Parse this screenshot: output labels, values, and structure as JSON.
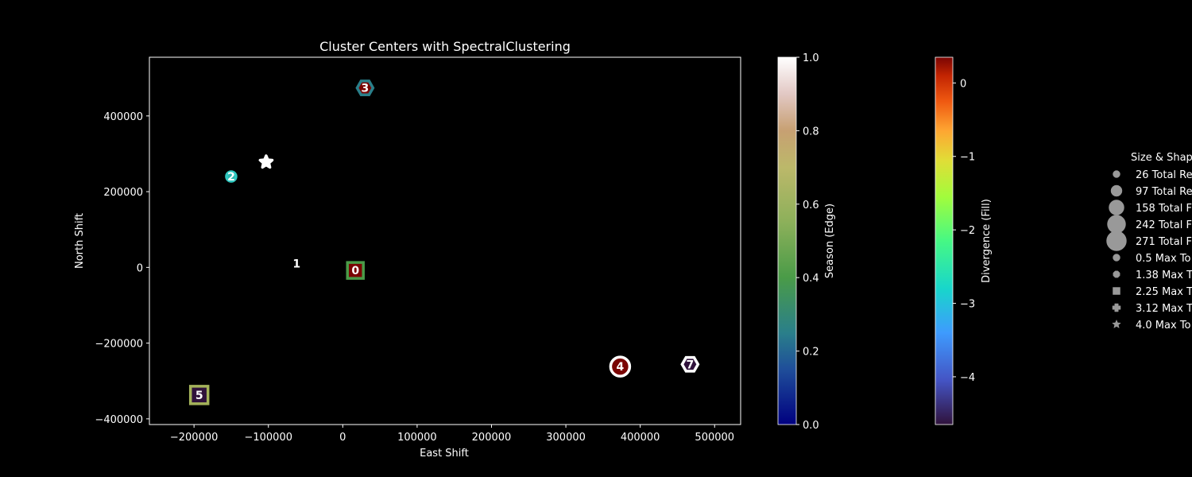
{
  "chart_data": {
    "type": "scatter",
    "title": "Cluster Centers with SpectralClustering",
    "xlabel": "East Shift",
    "ylabel": "North Shift",
    "xlim": [
      -260000,
      535000
    ],
    "ylim": [
      -415000,
      555000
    ],
    "xticks": [
      -200000,
      -100000,
      0,
      100000,
      200000,
      300000,
      400000,
      500000
    ],
    "yticks": [
      -400000,
      -200000,
      0,
      200000,
      400000
    ],
    "points": [
      {
        "label": "0",
        "x": 17000,
        "y": -8000,
        "marker": "square",
        "size": 10,
        "fill": "#7a0403",
        "edge": "#4a9b48"
      },
      {
        "label": "1",
        "x": -62000,
        "y": 10000,
        "marker": "none",
        "size": 6,
        "fill": "#000000",
        "edge": "#000000"
      },
      {
        "label": "2",
        "x": -150000,
        "y": 240000,
        "marker": "circle",
        "size": 6,
        "fill": "#2ab7b0",
        "edge": "#30c8c0"
      },
      {
        "label": "3",
        "x": 30000,
        "y": 474000,
        "marker": "hexagon",
        "size": 10,
        "fill": "#7a0403",
        "edge": "#2a7f8a"
      },
      {
        "label": "4",
        "x": 373000,
        "y": -262000,
        "marker": "circle",
        "size": 12,
        "fill": "#7a0403",
        "edge": "#ffffff"
      },
      {
        "label": "5",
        "x": -193000,
        "y": -337000,
        "marker": "square",
        "size": 11,
        "fill": "#30123b",
        "edge": "#a4b25a"
      },
      {
        "label": "",
        "x": -103000,
        "y": 278000,
        "marker": "star",
        "size": 8,
        "fill": "#ffffff",
        "edge": "#ffffff"
      },
      {
        "label": "7",
        "x": 467000,
        "y": -256000,
        "marker": "hexagon",
        "size": 10,
        "fill": "#30123b",
        "edge": "#ffffff"
      }
    ],
    "colorbar_edge": {
      "label": "Season (Edge)",
      "range": [
        0,
        1
      ],
      "ticks": [
        "0.0",
        "0.2",
        "0.4",
        "0.6",
        "0.8",
        "1.0"
      ]
    },
    "colorbar_fill": {
      "label": "Divergence (Fill)",
      "range": [
        -4.65,
        0.35
      ],
      "ticks": [
        "−4",
        "−3",
        "−2",
        "−1",
        "0"
      ],
      "tick_values": [
        -4,
        -3,
        -2,
        -1,
        0
      ]
    },
    "legend": {
      "title": "Size & Shap",
      "placement": "right",
      "entries": [
        {
          "label": "26 Total Re",
          "marker": "circle",
          "size": 4.5
        },
        {
          "label": "97 Total Re",
          "marker": "circle",
          "size": 7
        },
        {
          "label": "158 Total F",
          "marker": "circle",
          "size": 9.5
        },
        {
          "label": "242 Total F",
          "marker": "circle",
          "size": 11.5
        },
        {
          "label": "271 Total F",
          "marker": "circle",
          "size": 12.5
        },
        {
          "label": "0.5 Max To",
          "marker": "circle",
          "size": 4.5
        },
        {
          "label": "1.38 Max T",
          "marker": "octagon",
          "size": 4.5
        },
        {
          "label": "2.25 Max T",
          "marker": "square",
          "size": 4.5
        },
        {
          "label": "3.12 Max T",
          "marker": "plus",
          "size": 5
        },
        {
          "label": "4.0 Max To",
          "marker": "star",
          "size": 5.5
        }
      ]
    }
  }
}
